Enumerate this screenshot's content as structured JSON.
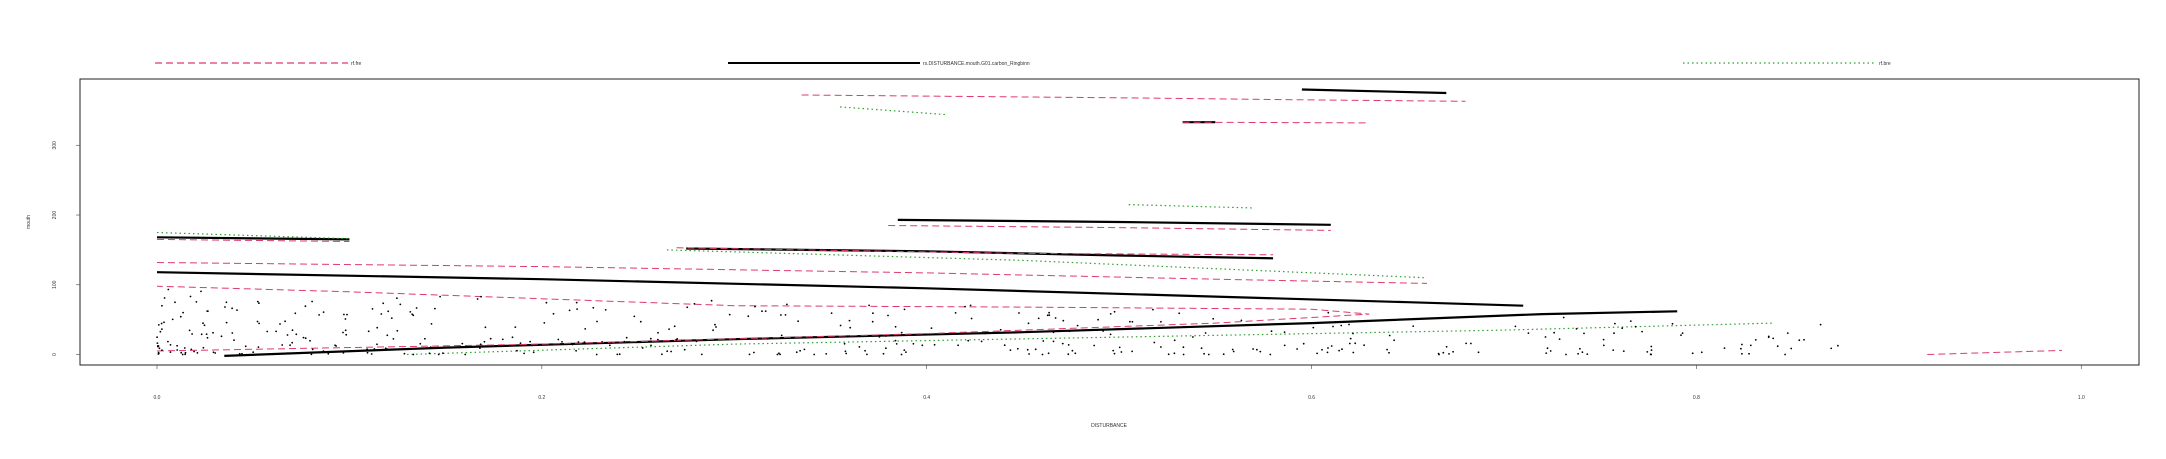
{
  "chart_data": {
    "type": "scatter",
    "xlabel": "DISTURBANCE",
    "ylabel": "mouth",
    "xlim": [
      -0.04,
      1.03
    ],
    "ylim": [
      -15,
      395
    ],
    "x_ticks": [
      "0.0",
      "0.2",
      "0.4",
      "0.6",
      "0.8",
      "1.0"
    ],
    "x_tick_values": [
      0.0,
      0.2,
      0.4,
      0.6,
      0.8,
      1.0
    ],
    "y_ticks": [
      "0",
      "100",
      "200",
      "300"
    ],
    "y_tick_values": [
      0,
      100,
      200,
      300
    ],
    "grid": false,
    "legend_position": "top",
    "legend": [
      {
        "label": "rf.fre",
        "color": "#dd3b6a",
        "dash": "dashed"
      },
      {
        "label": "rs.DISTURBANCE.mouth.G01.carbon_Ringbinn",
        "color": "#000000",
        "dash": "solid"
      },
      {
        "label": "rf.bre",
        "color": "#2e9e2e",
        "dash": "dotted"
      }
    ],
    "series": [
      {
        "color": "#000000",
        "dash": "solid",
        "width": 2.2,
        "points": [
          [
            0.035,
            -2
          ],
          [
            0.15,
            10
          ],
          [
            0.3,
            22
          ],
          [
            0.45,
            32
          ],
          [
            0.6,
            45
          ],
          [
            0.72,
            58
          ],
          [
            0.79,
            62
          ]
        ]
      },
      {
        "color": "#000000",
        "dash": "solid",
        "width": 2.2,
        "points": [
          [
            0.0,
            118
          ],
          [
            0.2,
            108
          ],
          [
            0.4,
            95
          ],
          [
            0.55,
            83
          ],
          [
            0.65,
            75
          ],
          [
            0.71,
            70
          ]
        ]
      },
      {
        "color": "#000000",
        "dash": "solid",
        "width": 2.2,
        "points": [
          [
            0.0,
            168
          ],
          [
            0.1,
            165
          ]
        ]
      },
      {
        "color": "#000000",
        "dash": "solid",
        "width": 2.2,
        "points": [
          [
            0.275,
            152
          ],
          [
            0.4,
            148
          ],
          [
            0.5,
            142
          ],
          [
            0.58,
            138
          ]
        ]
      },
      {
        "color": "#000000",
        "dash": "solid",
        "width": 2.2,
        "points": [
          [
            0.385,
            193
          ],
          [
            0.5,
            190
          ],
          [
            0.61,
            186
          ]
        ]
      },
      {
        "color": "#000000",
        "dash": "solid",
        "width": 2.2,
        "points": [
          [
            0.533,
            333
          ],
          [
            0.55,
            333
          ]
        ]
      },
      {
        "color": "#000000",
        "dash": "solid",
        "width": 2.2,
        "points": [
          [
            0.595,
            380
          ],
          [
            0.67,
            375
          ]
        ]
      },
      {
        "color": "#dd3b6a",
        "dash": "dashed",
        "width": 1.0,
        "points": [
          [
            0.0,
            5
          ],
          [
            0.2,
            15
          ],
          [
            0.4,
            30
          ],
          [
            0.55,
            45
          ],
          [
            0.63,
            58
          ],
          [
            0.6,
            65
          ],
          [
            0.45,
            68
          ],
          [
            0.3,
            70
          ],
          [
            0.1,
            90
          ],
          [
            0.0,
            98
          ]
        ]
      },
      {
        "color": "#dd3b6a",
        "dash": "dashed",
        "width": 1.0,
        "points": [
          [
            0.0,
            132
          ],
          [
            0.2,
            126
          ],
          [
            0.4,
            117
          ],
          [
            0.55,
            108
          ],
          [
            0.66,
            102
          ]
        ]
      },
      {
        "color": "#dd3b6a",
        "dash": "dashed",
        "width": 1.0,
        "points": [
          [
            0.0,
            165
          ],
          [
            0.1,
            162
          ]
        ]
      },
      {
        "color": "#dd3b6a",
        "dash": "dashed",
        "width": 1.0,
        "points": [
          [
            0.27,
            153
          ],
          [
            0.45,
            145
          ],
          [
            0.58,
            143
          ]
        ]
      },
      {
        "color": "#dd3b6a",
        "dash": "dashed",
        "width": 1.0,
        "points": [
          [
            0.38,
            185
          ],
          [
            0.5,
            182
          ],
          [
            0.61,
            178
          ]
        ]
      },
      {
        "color": "#dd3b6a",
        "dash": "dashed",
        "width": 1.0,
        "points": [
          [
            0.335,
            372
          ],
          [
            0.5,
            368
          ],
          [
            0.6,
            365
          ],
          [
            0.68,
            363
          ]
        ]
      },
      {
        "color": "#dd3b6a",
        "dash": "dashed",
        "width": 1.0,
        "points": [
          [
            0.533,
            333
          ],
          [
            0.63,
            332
          ]
        ]
      },
      {
        "color": "#dd3b6a",
        "dash": "dashed",
        "width": 1.0,
        "points": [
          [
            0.92,
            0
          ],
          [
            0.99,
            6
          ]
        ]
      },
      {
        "color": "#2e9e2e",
        "dash": "dotted",
        "width": 1.2,
        "points": [
          [
            0.0,
            175
          ],
          [
            0.1,
            166
          ]
        ]
      },
      {
        "color": "#2e9e2e",
        "dash": "dotted",
        "width": 1.2,
        "points": [
          [
            0.13,
            0
          ],
          [
            0.3,
            15
          ],
          [
            0.5,
            25
          ],
          [
            0.7,
            35
          ],
          [
            0.84,
            45
          ]
        ]
      },
      {
        "color": "#2e9e2e",
        "dash": "dotted",
        "width": 1.2,
        "points": [
          [
            0.265,
            150
          ],
          [
            0.45,
            135
          ],
          [
            0.66,
            110
          ]
        ]
      },
      {
        "color": "#2e9e2e",
        "dash": "dotted",
        "width": 1.2,
        "points": [
          [
            0.505,
            215
          ],
          [
            0.57,
            210
          ]
        ]
      },
      {
        "color": "#2e9e2e",
        "dash": "dotted",
        "width": 1.2,
        "points": [
          [
            0.355,
            355
          ],
          [
            0.41,
            344
          ]
        ]
      }
    ],
    "scatter": {
      "color": "#000000",
      "n": 420,
      "x_range": [
        0.0,
        0.88
      ],
      "y_range": [
        0,
        95
      ]
    }
  }
}
